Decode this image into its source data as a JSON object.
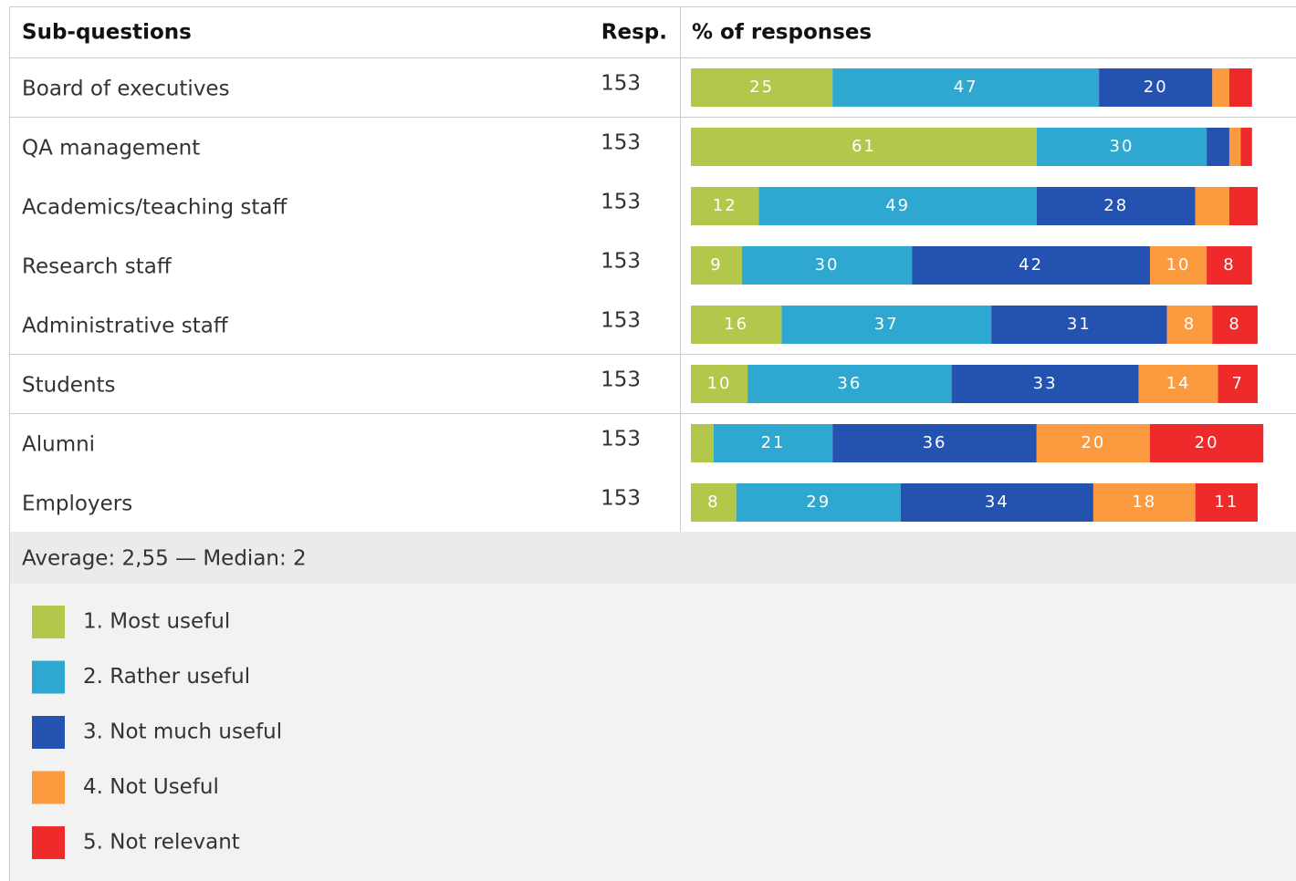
{
  "chart_data": {
    "type": "stacked_bar",
    "column_headers": [
      "Sub-questions",
      "Resp.",
      "% of responses"
    ],
    "categories": [
      "Board of executives",
      "QA management",
      "Academics/teaching staff",
      "Research staff",
      "Administrative staff",
      "Students",
      "Alumni",
      "Employers"
    ],
    "responses": [
      153,
      153,
      153,
      153,
      153,
      153,
      153,
      153
    ],
    "xlim": [
      0,
      100
    ],
    "series": [
      {
        "name": "1. Most useful",
        "color": "#b3c84a",
        "values": [
          25,
          61,
          12,
          9,
          16,
          10,
          4,
          8
        ]
      },
      {
        "name": "2. Rather useful",
        "color": "#2ea8d0",
        "values": [
          47,
          30,
          49,
          30,
          37,
          36,
          21,
          29
        ]
      },
      {
        "name": "3. Not much useful",
        "color": "#2452b0",
        "values": [
          20,
          4,
          28,
          42,
          31,
          33,
          36,
          34
        ]
      },
      {
        "name": "4. Not Useful",
        "color": "#fc9a40",
        "values": [
          3,
          2,
          6,
          10,
          8,
          14,
          20,
          18
        ]
      },
      {
        "name": "5. Not relevant",
        "color": "#ef2a2a",
        "values": [
          4,
          2,
          5,
          8,
          8,
          7,
          20,
          11
        ]
      }
    ],
    "summary": "Average: 2,55 — Median: 2"
  }
}
